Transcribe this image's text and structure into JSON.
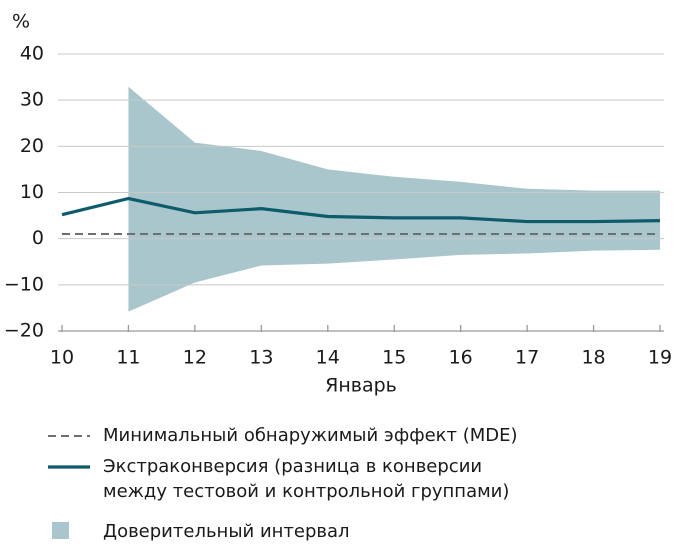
{
  "chart_data": {
    "type": "line",
    "y_unit": "%",
    "xlabel": "Январь",
    "x": [
      10,
      11,
      12,
      13,
      14,
      15,
      16,
      17,
      18,
      19
    ],
    "xlim": [
      10,
      19
    ],
    "xticks": [
      10,
      11,
      12,
      13,
      14,
      15,
      16,
      17,
      18,
      19
    ],
    "ylim": [
      -20,
      40
    ],
    "yticks": [
      {
        "value": -20,
        "label": "−20"
      },
      {
        "value": -10,
        "label": "−10"
      },
      0,
      10,
      20,
      30,
      40
    ],
    "grid": true,
    "series": [
      {
        "name": "Минимальный обнаружимый эффект (MDE)",
        "color": "#6d6e70",
        "style": "dashed",
        "values": [
          1,
          1,
          1,
          1,
          1,
          1,
          1,
          1,
          1,
          1
        ]
      },
      {
        "name": "Экстраконверсия (разница в конверсии\nмежду тестовой и контрольной группами)",
        "color": "#0d5c6b",
        "style": "solid",
        "values": [
          5.2,
          8.7,
          5.6,
          6.5,
          4.8,
          4.5,
          4.5,
          3.7,
          3.7,
          3.9
        ]
      },
      {
        "name": "Доверительный интервал",
        "color": "#a9c6cc",
        "style": "band",
        "upper": [
          null,
          32.9,
          20.8,
          19,
          15,
          13.4,
          12.3,
          10.8,
          10.4,
          10.4
        ],
        "lower": [
          null,
          -15.8,
          -9.5,
          -5.8,
          -5.4,
          -4.5,
          -3.5,
          -3.2,
          -2.6,
          -2.4
        ]
      }
    ]
  }
}
